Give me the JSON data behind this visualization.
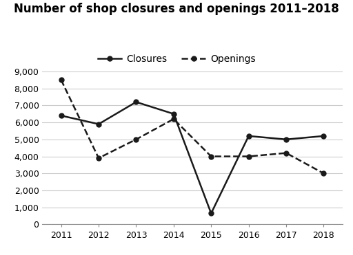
{
  "title": "Number of shop closures and openings 2011–2018",
  "years": [
    2011,
    2012,
    2013,
    2014,
    2015,
    2016,
    2017,
    2018
  ],
  "closures": [
    6400,
    5900,
    7200,
    6500,
    650,
    5200,
    5000,
    5200
  ],
  "openings": [
    8500,
    3900,
    5000,
    6200,
    4000,
    4000,
    4200,
    3000
  ],
  "line_color": "#1a1a1a",
  "ylim": [
    0,
    9000
  ],
  "yticks": [
    0,
    1000,
    2000,
    3000,
    4000,
    5000,
    6000,
    7000,
    8000,
    9000
  ],
  "ytick_labels": [
    "0",
    "1,000",
    "2,000",
    "3,000",
    "4,000",
    "5,000",
    "6,000",
    "7,000",
    "8,000",
    "9,000"
  ],
  "legend_closures": "Closures",
  "legend_openings": "Openings",
  "background_color": "#ffffff",
  "grid_color": "#cccccc",
  "title_fontsize": 12,
  "axis_fontsize": 9,
  "legend_fontsize": 10
}
